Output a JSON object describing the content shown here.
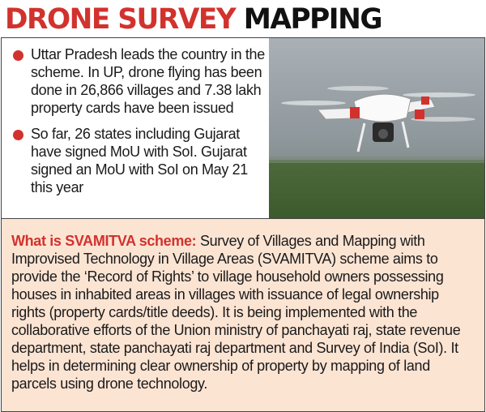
{
  "header": {
    "title_red": "DRONE SURVEY",
    "title_black": "MAPPING"
  },
  "bullets": [
    "Uttar Pradesh leads the country in the scheme. In UP, drone flying has been done in 26,866 villages and 7.38 lakh property cards have been issued",
    "So far, 26 states including Gujarat have signed MoU with SoI. Gujarat signed an MoU with SoI on May 21 this year"
  ],
  "scheme": {
    "label": "What is SVAMITVA scheme:",
    "text": "Survey of Villages and Mapping with Improvised Technology in Village Areas (SVAMITVA) scheme aims to provide the ‘Record of Rights’ to village household owners possessing houses in inhabited areas in villages with issuance of legal ownership rights (property cards/title deeds). It is being implemented with the collaborative efforts of the Union ministry of panchayati raj, state revenue department, state panchayati raj department and Survey of India (SoI). It helps in determining clear ownership of property by mapping of land parcels using drone technology."
  }
}
